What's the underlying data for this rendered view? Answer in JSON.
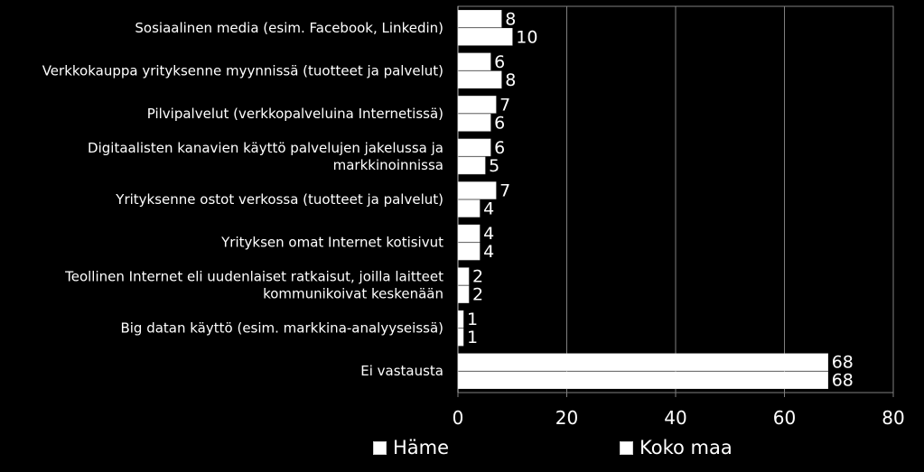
{
  "chart_data": {
    "type": "bar",
    "orientation": "horizontal",
    "categories": [
      "Sosiaalinen media (esim. Facebook, Linkedin)",
      "Verkkokauppa yrityksenne myynnissä (tuotteet ja palvelut)",
      "Pilvipalvelut  (verkkopalveluina Internetissä)",
      "Digitaalisten kanavien käyttö palvelujen jakelussa ja markkinoinnissa",
      "Yrityksenne ostot verkossa (tuotteet ja palvelut)",
      "Yrityksen omat Internet kotisivut",
      "Teollinen Internet eli uudenlaiset ratkaisut, joilla laitteet kommunikoivat keskenään",
      "Big datan käyttö (esim. markkina-analyyseissä)",
      "Ei vastausta"
    ],
    "category_lines": [
      [
        "Sosiaalinen media (esim. Facebook, Linkedin)"
      ],
      [
        "Verkkokauppa yrityksenne myynnissä (tuotteet ja palvelut)"
      ],
      [
        "Pilvipalvelut  (verkkopalveluina Internetissä)"
      ],
      [
        "Digitaalisten kanavien käyttö palvelujen jakelussa ja",
        "markkinoinnissa"
      ],
      [
        "Yrityksenne ostot verkossa (tuotteet ja palvelut)"
      ],
      [
        "Yrityksen omat Internet kotisivut"
      ],
      [
        "Teollinen Internet eli uudenlaiset ratkaisut, joilla laitteet",
        "kommunikoivat keskenään"
      ],
      [
        "Big datan käyttö (esim. markkina-analyyseissä)"
      ],
      [
        "Ei vastausta"
      ]
    ],
    "series": [
      {
        "name": "Häme",
        "values": [
          8,
          6,
          7,
          6,
          7,
          4,
          2,
          1,
          68
        ]
      },
      {
        "name": "Koko maa",
        "values": [
          10,
          8,
          6,
          5,
          4,
          4,
          2,
          1,
          68
        ]
      }
    ],
    "xlim": [
      0,
      80
    ],
    "xticks": [
      "0",
      "20",
      "40",
      "60",
      "80"
    ],
    "grid": true,
    "legend": "bottom",
    "colors": {
      "background": "#000000",
      "bar": "#ffffff",
      "text": "#ffffff",
      "grid": "#808080"
    }
  }
}
